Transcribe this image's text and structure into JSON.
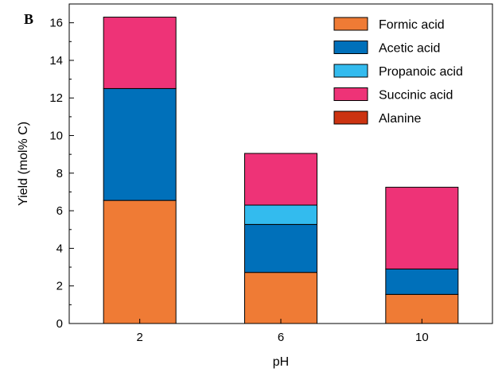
{
  "chart_data": {
    "type": "bar",
    "stacked": true,
    "panel_label": "B",
    "categories": [
      "2",
      "6",
      "10"
    ],
    "xlabel": "pH",
    "ylabel": "Yield (mol% C)",
    "ylim": [
      0,
      17
    ],
    "yticks": [
      0,
      2,
      4,
      6,
      8,
      10,
      12,
      14,
      16
    ],
    "grid": false,
    "legend_position": "top-right",
    "series": [
      {
        "name": "Formic acid",
        "color": "#ef7b35",
        "values": [
          6.55,
          2.72,
          1.55
        ]
      },
      {
        "name": "Acetic acid",
        "color": "#0070ba",
        "values": [
          5.95,
          2.55,
          1.35
        ]
      },
      {
        "name": "Propanoic acid",
        "color": "#33bbee",
        "values": [
          0,
          1.03,
          0
        ]
      },
      {
        "name": "Succinic acid",
        "color": "#ee3377",
        "values": [
          3.8,
          2.75,
          4.35
        ]
      },
      {
        "name": "Alanine",
        "color": "#cc3311",
        "values": [
          0,
          0,
          0
        ]
      }
    ]
  }
}
